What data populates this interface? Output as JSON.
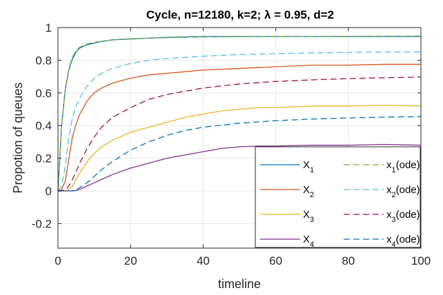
{
  "chart_data": {
    "type": "line",
    "title": "Cycle, n=12180, k=2; λ = 0.95, d=2",
    "xlabel": "timeline",
    "ylabel": "Propotion of queues",
    "xlim": [
      0,
      100
    ],
    "ylim": [
      -0.35,
      1.0
    ],
    "xticks": [
      0,
      20,
      40,
      60,
      80,
      100
    ],
    "yticks": [
      -0.2,
      0,
      0.2,
      0.4,
      0.6,
      0.8,
      1
    ],
    "ytick_labels": [
      "-0.2",
      "0",
      "0.2",
      "0.4",
      "0.6",
      "0.8",
      "1"
    ],
    "grid": true,
    "legend_location": "lower-right",
    "legend_columns": 2,
    "series": [
      {
        "name": "X",
        "subscript": "1",
        "style": "solid",
        "color": "#0072BD",
        "x": [
          0,
          1,
          2,
          3,
          4,
          5,
          6,
          7,
          8,
          10,
          12,
          15,
          20,
          25,
          30,
          40,
          50,
          60,
          70,
          80,
          90,
          100
        ],
        "y": [
          0,
          0.4,
          0.62,
          0.74,
          0.81,
          0.85,
          0.875,
          0.885,
          0.895,
          0.905,
          0.915,
          0.925,
          0.93,
          0.935,
          0.94,
          0.945,
          0.945,
          0.945,
          0.945,
          0.945,
          0.945,
          0.945
        ]
      },
      {
        "name": "X",
        "subscript": "2",
        "style": "solid",
        "color": "#D95319",
        "x": [
          0,
          1,
          2,
          3,
          4,
          5,
          6,
          8,
          10,
          12,
          15,
          20,
          25,
          30,
          40,
          50,
          60,
          70,
          80,
          90,
          100
        ],
        "y": [
          0,
          0.01,
          0.06,
          0.2,
          0.33,
          0.41,
          0.47,
          0.55,
          0.6,
          0.63,
          0.66,
          0.69,
          0.71,
          0.72,
          0.74,
          0.75,
          0.76,
          0.77,
          0.77,
          0.775,
          0.775
        ]
      },
      {
        "name": "X",
        "subscript": "3",
        "style": "solid",
        "color": "#EDB120",
        "x": [
          0,
          2,
          3,
          4,
          5,
          6,
          8,
          10,
          12,
          15,
          20,
          25,
          30,
          35,
          40,
          45,
          50,
          55,
          60,
          70,
          80,
          90,
          100
        ],
        "y": [
          0,
          0,
          0.01,
          0.03,
          0.07,
          0.11,
          0.18,
          0.23,
          0.27,
          0.31,
          0.36,
          0.39,
          0.42,
          0.45,
          0.47,
          0.49,
          0.5,
          0.51,
          0.51,
          0.52,
          0.52,
          0.525,
          0.52
        ]
      },
      {
        "name": "X",
        "subscript": "4",
        "style": "solid",
        "color": "#7E2F8E",
        "x": [
          0,
          4,
          5,
          6,
          8,
          10,
          12,
          15,
          20,
          25,
          30,
          35,
          40,
          45,
          50,
          55,
          60,
          70,
          80,
          90,
          100
        ],
        "y": [
          0,
          0,
          0.003,
          0.01,
          0.03,
          0.05,
          0.07,
          0.1,
          0.14,
          0.17,
          0.2,
          0.22,
          0.24,
          0.26,
          0.27,
          0.275,
          0.275,
          0.28,
          0.28,
          0.285,
          0.28
        ]
      },
      {
        "name": "x",
        "subscript": "1",
        "suffix": "(ode)",
        "style": "dashed",
        "color": "#77AC30",
        "x": [
          0,
          1,
          2,
          3,
          4,
          5,
          6,
          8,
          10,
          15,
          20,
          30,
          40,
          60,
          80,
          100
        ],
        "y": [
          0,
          0.4,
          0.62,
          0.75,
          0.82,
          0.86,
          0.88,
          0.9,
          0.91,
          0.925,
          0.932,
          0.938,
          0.942,
          0.945,
          0.947,
          0.948
        ]
      },
      {
        "name": "x",
        "subscript": "2",
        "suffix": "(ode)",
        "style": "dashed",
        "color": "#4DBEEE",
        "x": [
          0,
          1,
          2,
          3,
          4,
          5,
          6,
          8,
          10,
          12,
          15,
          20,
          25,
          30,
          40,
          50,
          60,
          70,
          80,
          90,
          100
        ],
        "y": [
          0,
          0.03,
          0.15,
          0.33,
          0.45,
          0.52,
          0.57,
          0.64,
          0.69,
          0.72,
          0.75,
          0.78,
          0.8,
          0.81,
          0.825,
          0.835,
          0.84,
          0.845,
          0.848,
          0.85,
          0.852
        ]
      },
      {
        "name": "x",
        "subscript": "3",
        "suffix": "(ode)",
        "style": "dashed",
        "color": "#A2142F",
        "x": [
          0,
          2,
          3,
          4,
          5,
          6,
          8,
          10,
          12,
          15,
          20,
          25,
          30,
          40,
          50,
          60,
          70,
          80,
          90,
          100
        ],
        "y": [
          0,
          0.005,
          0.03,
          0.07,
          0.12,
          0.17,
          0.26,
          0.33,
          0.39,
          0.45,
          0.51,
          0.56,
          0.59,
          0.63,
          0.655,
          0.67,
          0.68,
          0.688,
          0.693,
          0.697
        ]
      },
      {
        "name": "x",
        "subscript": "4",
        "suffix": "(ode)",
        "style": "dashed",
        "color": "#0072BD",
        "x": [
          0,
          4,
          5,
          6,
          8,
          10,
          12,
          15,
          20,
          25,
          30,
          35,
          40,
          50,
          60,
          70,
          80,
          90,
          100
        ],
        "y": [
          0,
          0,
          0.01,
          0.02,
          0.05,
          0.09,
          0.13,
          0.18,
          0.25,
          0.3,
          0.34,
          0.37,
          0.39,
          0.415,
          0.43,
          0.44,
          0.447,
          0.452,
          0.455
        ]
      }
    ]
  }
}
